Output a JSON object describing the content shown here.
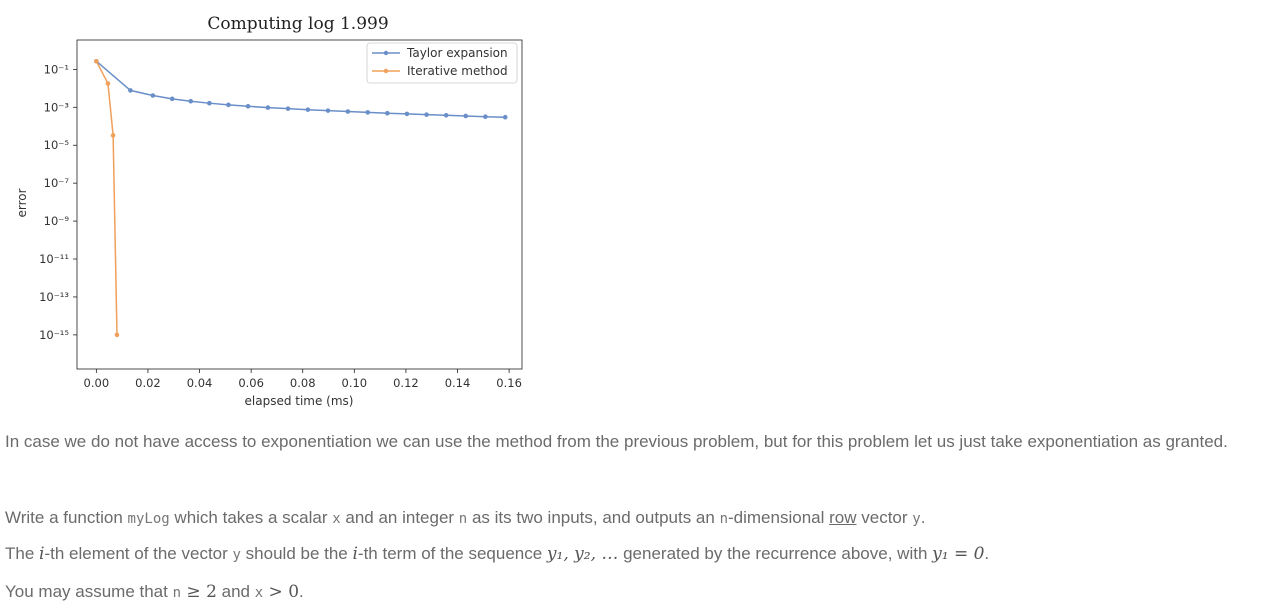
{
  "chart_data": {
    "type": "line",
    "title": "Computing log 1.999",
    "xlabel": "elapsed time (ms)",
    "ylabel": "error",
    "xlim": [
      -0.0075,
      0.165
    ],
    "yscale": "log",
    "ylim_log10": [
      -16.8,
      0.55
    ],
    "xticks": [
      0.0,
      0.02,
      0.04,
      0.06,
      0.08,
      0.1,
      0.12,
      0.14,
      0.16
    ],
    "xtick_labels": [
      "0.00",
      "0.02",
      "0.04",
      "0.06",
      "0.08",
      "0.10",
      "0.12",
      "0.14",
      "0.16"
    ],
    "yticks_log10": [
      -1,
      -3,
      -5,
      -7,
      -9,
      -11,
      -13,
      -15
    ],
    "ytick_labels": [
      "10⁻¹",
      "10⁻³",
      "10⁻⁵",
      "10⁻⁷",
      "10⁻⁹",
      "10⁻¹¹",
      "10⁻¹³",
      "10⁻¹⁵"
    ],
    "legend_position": "top-right",
    "grid": false,
    "series": [
      {
        "name": "Taylor expansion",
        "color": "#6a8fc8",
        "x": [
          0.0,
          0.0132,
          0.0219,
          0.0294,
          0.0366,
          0.0438,
          0.0512,
          0.0588,
          0.0665,
          0.0743,
          0.082,
          0.0898,
          0.0975,
          0.1052,
          0.1128,
          0.1204,
          0.128,
          0.1356,
          0.1432,
          0.1508,
          0.1585
        ],
        "y": [
          0.269,
          0.0078,
          0.0042,
          0.0028,
          0.0021,
          0.00165,
          0.00135,
          0.00113,
          0.00097,
          0.00085,
          0.00075,
          0.00067,
          0.0006,
          0.00054,
          0.00049,
          0.00045,
          0.00041,
          0.00038,
          0.00035,
          0.00032,
          0.0003
        ]
      },
      {
        "name": "Iterative method",
        "color": "#f0a05a",
        "x": [
          0.0,
          0.0045,
          0.0065,
          0.008
        ],
        "y": [
          0.269,
          0.018,
          3.3e-05,
          1e-15
        ]
      }
    ]
  },
  "text": {
    "p1": "In case we do not have access to exponentiation we can use the method from the previous problem, but for this problem let us just take exponentiation as granted.",
    "p2_a": "Write a function ",
    "p2_fn": "myLog",
    "p2_b": " which takes a scalar ",
    "p2_x": "x",
    "p2_c": " and an integer ",
    "p2_n": "n",
    "p2_d": " as its two inputs, and outputs an ",
    "p2_n2": "n",
    "p2_e": "-dimensional ",
    "p2_row": "row",
    "p2_f": " vector ",
    "p2_y": "y",
    "p2_g": ".",
    "p3_a": "The ",
    "p3_i": "i",
    "p3_b": "-th element of the vector ",
    "p3_y": "y",
    "p3_c": " should be the ",
    "p3_i2": "i",
    "p3_d": "-th term of the sequence ",
    "p3_seq": "y₁, y₂, …",
    "p3_e": " generated by the recurrence above, with ",
    "p3_eq": "y₁ = 0",
    "p3_f": ".",
    "p4_a": "You may assume that ",
    "p4_n": "n",
    "p4_cond1": " ≥ 2",
    "p4_b": " and ",
    "p4_x": "x",
    "p4_cond2": " > 0",
    "p4_c": "."
  }
}
